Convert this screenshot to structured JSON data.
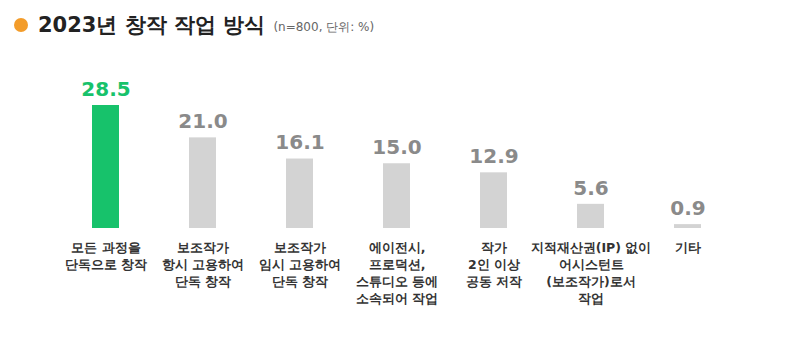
{
  "chart_data": {
    "type": "bar",
    "title": "2023년 창작 작업 방식",
    "subtitle": "(n=800, 단위: %)",
    "categories": [
      "모든 과정을\n단독으로 창작",
      "보조작가\n항시 고용하여\n단독 창작",
      "보조작가\n임시 고용하여\n단독 창작",
      "에이전시,\n프로덕션,\n스튜디오 등에\n소속되어 작업",
      "작가\n2인 이상\n공동 저작",
      "지적재산권(IP) 없이\n어시스턴트\n(보조작가)로서\n작업",
      "기타"
    ],
    "values": [
      28.5,
      21.0,
      16.1,
      15.0,
      12.9,
      5.6,
      0.9
    ],
    "value_labels": [
      "28.5",
      "21.0",
      "16.1",
      "15.0",
      "12.9",
      "5.6",
      "0.9"
    ],
    "colors": [
      "#17c26b",
      "#d3d3d3",
      "#d3d3d3",
      "#d3d3d3",
      "#d3d3d3",
      "#d3d3d3",
      "#d3d3d3"
    ],
    "ylim": [
      0,
      28.5
    ],
    "data_labels": true,
    "tick_labels": "x",
    "grid": false
  }
}
